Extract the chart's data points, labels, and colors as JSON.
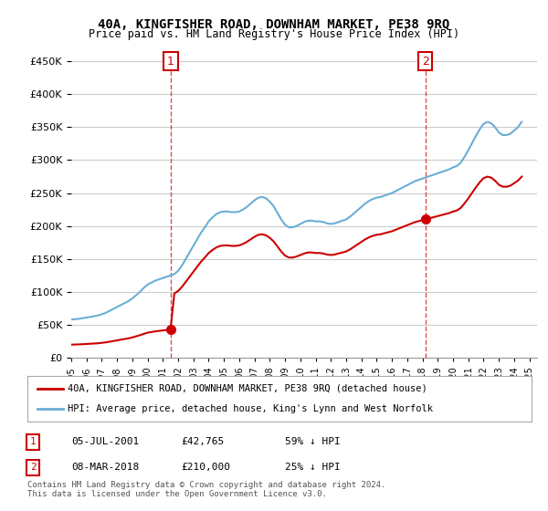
{
  "title": "40A, KINGFISHER ROAD, DOWNHAM MARKET, PE38 9RQ",
  "subtitle": "Price paid vs. HM Land Registry's House Price Index (HPI)",
  "ylabel_ticks": [
    "£0",
    "£50K",
    "£100K",
    "£150K",
    "£200K",
    "£250K",
    "£300K",
    "£350K",
    "£400K",
    "£450K"
  ],
  "ylim": [
    0,
    450000
  ],
  "xlim_start": 1995.0,
  "xlim_end": 2025.5,
  "hpi_color": "#6baed6",
  "price_color": "#cc0000",
  "dashed_color": "#cc0000",
  "background_color": "#ffffff",
  "grid_color": "#cccccc",
  "sale1_x": 2001.51,
  "sale1_y": 42765,
  "sale2_x": 2018.18,
  "sale2_y": 210000,
  "sale1_label": "1",
  "sale2_label": "2",
  "legend_property": "40A, KINGFISHER ROAD, DOWNHAM MARKET, PE38 9RQ (detached house)",
  "legend_hpi": "HPI: Average price, detached house, King's Lynn and West Norfolk",
  "table_row1": "1     05-JUL-2001          £42,765          59% ↓ HPI",
  "table_row2": "2     08-MAR-2018          £210,000        25% ↓ HPI",
  "footnote": "Contains HM Land Registry data © Crown copyright and database right 2024.\nThis data is licensed under the Open Government Licence v3.0.",
  "hpi_data_x": [
    1995.0,
    1995.25,
    1995.5,
    1995.75,
    1996.0,
    1996.25,
    1996.5,
    1996.75,
    1997.0,
    1997.25,
    1997.5,
    1997.75,
    1998.0,
    1998.25,
    1998.5,
    1998.75,
    1999.0,
    1999.25,
    1999.5,
    1999.75,
    2000.0,
    2000.25,
    2000.5,
    2000.75,
    2001.0,
    2001.25,
    2001.5,
    2001.75,
    2002.0,
    2002.25,
    2002.5,
    2002.75,
    2003.0,
    2003.25,
    2003.5,
    2003.75,
    2004.0,
    2004.25,
    2004.5,
    2004.75,
    2005.0,
    2005.25,
    2005.5,
    2005.75,
    2006.0,
    2006.25,
    2006.5,
    2006.75,
    2007.0,
    2007.25,
    2007.5,
    2007.75,
    2008.0,
    2008.25,
    2008.5,
    2008.75,
    2009.0,
    2009.25,
    2009.5,
    2009.75,
    2010.0,
    2010.25,
    2010.5,
    2010.75,
    2011.0,
    2011.25,
    2011.5,
    2011.75,
    2012.0,
    2012.25,
    2012.5,
    2012.75,
    2013.0,
    2013.25,
    2013.5,
    2013.75,
    2014.0,
    2014.25,
    2014.5,
    2014.75,
    2015.0,
    2015.25,
    2015.5,
    2015.75,
    2016.0,
    2016.25,
    2016.5,
    2016.75,
    2017.0,
    2017.25,
    2017.5,
    2017.75,
    2018.0,
    2018.25,
    2018.5,
    2018.75,
    2019.0,
    2019.25,
    2019.5,
    2019.75,
    2020.0,
    2020.25,
    2020.5,
    2020.75,
    2021.0,
    2021.25,
    2021.5,
    2021.75,
    2022.0,
    2022.25,
    2022.5,
    2022.75,
    2023.0,
    2023.25,
    2023.5,
    2023.75,
    2024.0,
    2024.25,
    2024.5
  ],
  "hpi_data_y": [
    58000,
    58500,
    59000,
    60000,
    61000,
    62000,
    63000,
    64000,
    66000,
    68000,
    71000,
    74000,
    77000,
    80000,
    83000,
    86000,
    90000,
    95000,
    100000,
    106000,
    111000,
    114000,
    117000,
    119000,
    121000,
    123000,
    125000,
    127000,
    132000,
    140000,
    150000,
    160000,
    170000,
    180000,
    190000,
    198000,
    207000,
    213000,
    218000,
    221000,
    222000,
    222000,
    221000,
    221000,
    222000,
    225000,
    229000,
    234000,
    239000,
    243000,
    244000,
    242000,
    237000,
    230000,
    220000,
    210000,
    202000,
    198000,
    198000,
    200000,
    203000,
    206000,
    208000,
    208000,
    207000,
    207000,
    206000,
    204000,
    203000,
    204000,
    206000,
    208000,
    210000,
    214000,
    219000,
    224000,
    229000,
    234000,
    238000,
    241000,
    243000,
    244000,
    246000,
    248000,
    250000,
    253000,
    256000,
    259000,
    262000,
    265000,
    268000,
    270000,
    272000,
    274000,
    276000,
    278000,
    280000,
    282000,
    284000,
    286000,
    289000,
    291000,
    296000,
    305000,
    315000,
    326000,
    337000,
    347000,
    355000,
    358000,
    356000,
    350000,
    342000,
    338000,
    338000,
    340000,
    345000,
    350000,
    358000
  ],
  "price_data_x": [
    1995.0,
    2001.51,
    2018.18,
    2024.75
  ],
  "price_data_y": [
    18000,
    42765,
    210000,
    260000
  ]
}
